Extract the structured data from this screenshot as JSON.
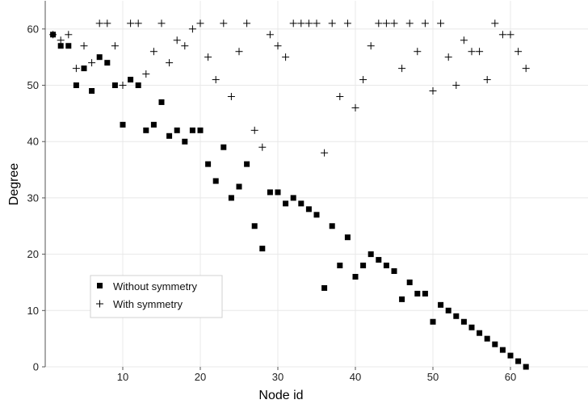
{
  "chart_data": {
    "type": "scatter",
    "xlabel": "Node id",
    "ylabel": "Degree",
    "xlim": [
      0,
      70
    ],
    "ylim": [
      0,
      65
    ],
    "x_ticks": [
      10,
      20,
      30,
      40,
      50,
      60
    ],
    "y_ticks": [
      0,
      10,
      20,
      30,
      40,
      50,
      60
    ],
    "grid": true,
    "legend_position": "bottom-left",
    "series": [
      {
        "name": "Without symmetry",
        "marker": "square",
        "x": [
          1,
          2,
          3,
          4,
          5,
          6,
          7,
          8,
          9,
          10,
          11,
          12,
          13,
          14,
          15,
          16,
          17,
          18,
          19,
          20,
          21,
          22,
          23,
          24,
          25,
          26,
          27,
          28,
          29,
          30,
          31,
          32,
          33,
          34,
          35,
          36,
          37,
          38,
          39,
          40,
          41,
          42,
          43,
          44,
          45,
          46,
          47,
          48,
          49,
          50,
          51,
          52,
          53,
          54,
          55,
          56,
          57,
          58,
          59,
          60,
          61,
          62
        ],
        "y": [
          59,
          57,
          57,
          50,
          53,
          49,
          55,
          54,
          50,
          43,
          51,
          50,
          42,
          43,
          47,
          41,
          42,
          40,
          42,
          42,
          36,
          33,
          39,
          30,
          32,
          36,
          25,
          21,
          31,
          31,
          29,
          30,
          29,
          28,
          27,
          14,
          25,
          18,
          23,
          16,
          18,
          20,
          19,
          18,
          17,
          12,
          15,
          13,
          13,
          8,
          11,
          10,
          9,
          8,
          7,
          6,
          5,
          4,
          3,
          2,
          1,
          0
        ]
      },
      {
        "name": "With symmetry",
        "marker": "plus",
        "x": [
          1,
          2,
          3,
          4,
          5,
          6,
          7,
          8,
          9,
          10,
          11,
          12,
          13,
          14,
          15,
          16,
          17,
          18,
          19,
          20,
          21,
          22,
          23,
          24,
          25,
          26,
          27,
          28,
          29,
          30,
          31,
          32,
          33,
          34,
          35,
          36,
          37,
          38,
          39,
          40,
          41,
          42,
          43,
          44,
          45,
          46,
          47,
          48,
          49,
          50,
          51,
          52,
          53,
          54,
          55,
          56,
          57,
          58,
          59,
          60,
          61,
          62
        ],
        "y": [
          59,
          58,
          59,
          53,
          57,
          54,
          61,
          61,
          57,
          50,
          61,
          61,
          52,
          56,
          61,
          54,
          58,
          57,
          60,
          61,
          55,
          51,
          61,
          48,
          56,
          61,
          42,
          39,
          59,
          57,
          55,
          61,
          61,
          61,
          61,
          38,
          61,
          48,
          61,
          46,
          51,
          57,
          61,
          61,
          61,
          53,
          61,
          56,
          61,
          49,
          61,
          55,
          50,
          58,
          56,
          56,
          51,
          61,
          59,
          59,
          56,
          53
        ]
      }
    ]
  }
}
